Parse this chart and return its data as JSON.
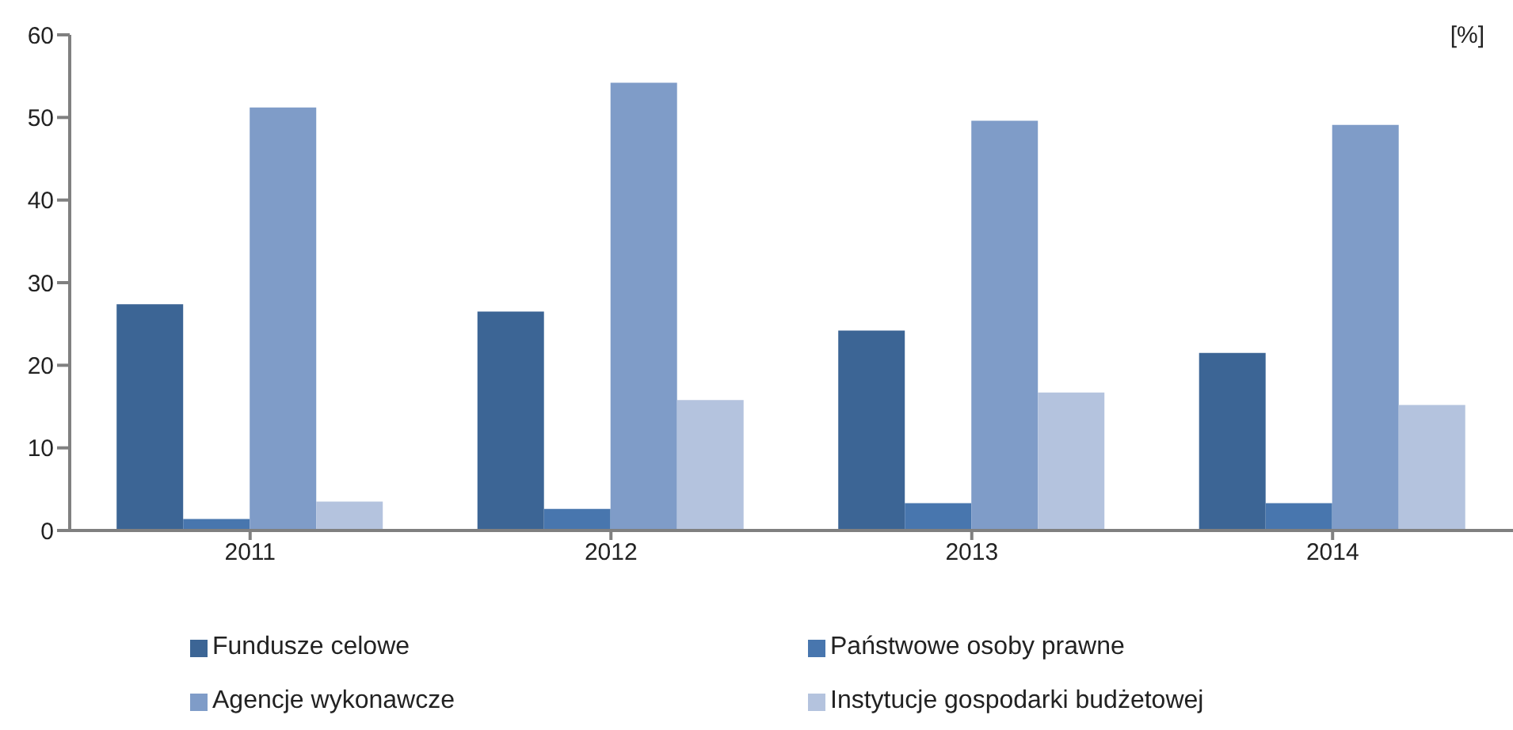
{
  "chart_data": {
    "type": "bar",
    "ylabel": "[%]",
    "categories": [
      "2011",
      "2012",
      "2013",
      "2014"
    ],
    "series": [
      {
        "name": "Fundusze celowe",
        "color": "#3c6595",
        "values": [
          27.4,
          26.5,
          24.2,
          21.5
        ]
      },
      {
        "name": "Państwowe osoby prawne",
        "color": "#4876ae",
        "values": [
          1.4,
          2.6,
          3.3,
          3.3
        ]
      },
      {
        "name": "Agencje wykonawcze",
        "color": "#7f9cc8",
        "values": [
          51.2,
          54.2,
          49.6,
          49.1
        ]
      },
      {
        "name": "Instytucje gospodarki budżetowej",
        "color": "#b4c3de",
        "values": [
          3.5,
          15.8,
          16.7,
          15.2
        ]
      }
    ],
    "ylim": [
      0,
      60
    ],
    "yticks": [
      0,
      10,
      20,
      30,
      40,
      50,
      60
    ],
    "grid": false,
    "legend": "bottom"
  }
}
